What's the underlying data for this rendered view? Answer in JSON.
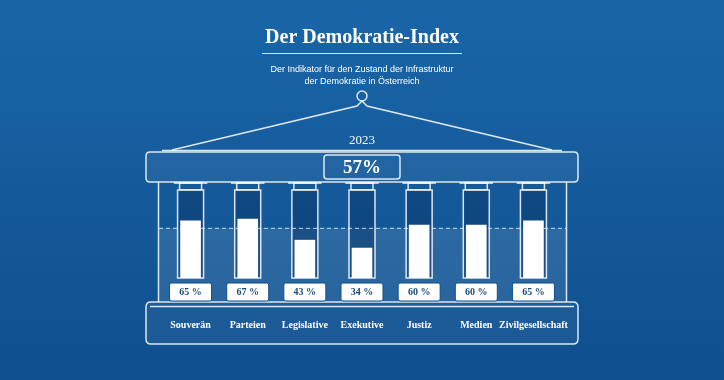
{
  "chart_data": {
    "type": "bar",
    "title": "Der Demokratie-Index",
    "subtitle": [
      "Der Indikator für den Zustand der Infrastruktur",
      "der Demokratie in Österreich"
    ],
    "overall": {
      "year": "2023",
      "value": 57,
      "label": "57%"
    },
    "categories": [
      "Souverän",
      "Parteien",
      "Legislative",
      "Exekutive",
      "Justiz",
      "Medien",
      "Zivilgesellschaft"
    ],
    "values": [
      65,
      67,
      43,
      34,
      60,
      60,
      65
    ],
    "value_labels": [
      "65 %",
      "67 %",
      "43 %",
      "34 %",
      "60 %",
      "60 %",
      "65 %"
    ],
    "color": "#ffffff",
    "ylim": [
      0,
      100
    ],
    "grid": false,
    "tick_labels": false,
    "data_labels": true
  }
}
